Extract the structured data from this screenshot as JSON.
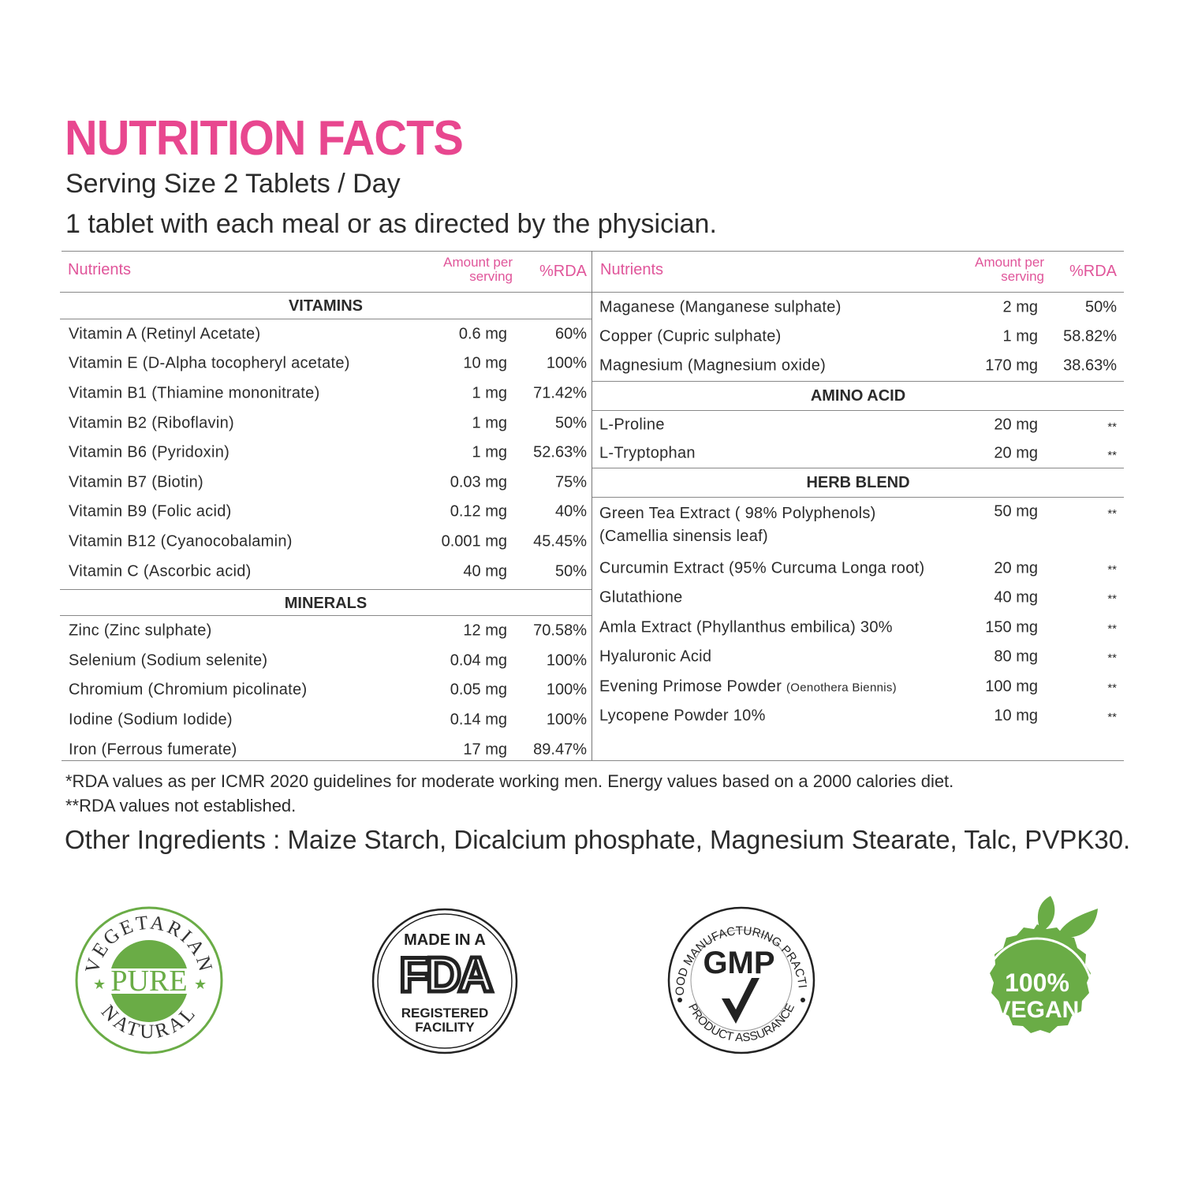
{
  "title": "NUTRITION FACTS",
  "serving_size": "Serving Size 2 Tablets / Day",
  "directions": "1 tablet with each meal or as directed by the physician.",
  "colors": {
    "accent": "#e8478f",
    "header_text": "#e0559a",
    "badge_green": "#6aac46",
    "text": "#2b2b2b"
  },
  "table_header": {
    "nutrients": "Nutrients",
    "amount_line1": "Amount per",
    "amount_line2": "serving",
    "rda": "%RDA"
  },
  "left": {
    "sections": [
      {
        "name": "VITAMINS",
        "rows": [
          {
            "name": "Vitamin A (Retinyl Acetate)",
            "amount": "0.6 mg",
            "rda": "60%"
          },
          {
            "name": "Vitamin E (D-Alpha tocopheryl acetate)",
            "amount": "10 mg",
            "rda": "100%"
          },
          {
            "name": "Vitamin B1 (Thiamine mononitrate)",
            "amount": "1 mg",
            "rda": "71.42%"
          },
          {
            "name": "Vitamin B2 (Riboflavin)",
            "amount": "1 mg",
            "rda": "50%"
          },
          {
            "name": "Vitamin B6 (Pyridoxin)",
            "amount": "1 mg",
            "rda": "52.63%"
          },
          {
            "name": "Vitamin B7 (Biotin)",
            "amount": "0.03 mg",
            "rda": "75%"
          },
          {
            "name": "Vitamin B9 (Folic acid)",
            "amount": "0.12 mg",
            "rda": "40%"
          },
          {
            "name": "Vitamin B12 (Cyanocobalamin)",
            "amount": "0.001 mg",
            "rda": "45.45%"
          },
          {
            "name": "Vitamin C (Ascorbic acid)",
            "amount": "40 mg",
            "rda": "50%"
          }
        ]
      },
      {
        "name": "MINERALS",
        "rows": [
          {
            "name": "Zinc (Zinc sulphate)",
            "amount": "12 mg",
            "rda": "70.58%"
          },
          {
            "name": "Selenium (Sodium selenite)",
            "amount": "0.04 mg",
            "rda": "100%"
          },
          {
            "name": "Chromium (Chromium picolinate)",
            "amount": "0.05 mg",
            "rda": "100%"
          },
          {
            "name": "Iodine (Sodium Iodide)",
            "amount": "0.14 mg",
            "rda": "100%"
          },
          {
            "name": "Iron (Ferrous fumerate)",
            "amount": "17 mg",
            "rda": "89.47%"
          }
        ]
      }
    ]
  },
  "right": {
    "sections": [
      {
        "name": "",
        "rows": [
          {
            "name": "Maganese (Manganese sulphate)",
            "amount": "2 mg",
            "rda": "50%"
          },
          {
            "name": "Copper (Cupric sulphate)",
            "amount": "1 mg",
            "rda": "58.82%"
          },
          {
            "name": "Magnesium (Magnesium oxide)",
            "amount": "170 mg",
            "rda": "38.63%"
          }
        ]
      },
      {
        "name": "AMINO ACID",
        "rows": [
          {
            "name": "L-Proline",
            "amount": "20 mg",
            "rda": "**"
          },
          {
            "name": "L-Tryptophan",
            "amount": "20 mg",
            "rda": "**"
          }
        ]
      },
      {
        "name": "HERB BLEND",
        "rows": [
          {
            "name": "Green Tea Extract ( 98% Polyphenols)",
            "name2": "(Camellia sinensis leaf)",
            "amount": "50 mg",
            "rda": "**"
          },
          {
            "name": "Curcumin Extract (95% Curcuma Longa root)",
            "amount": "20 mg",
            "rda": "**"
          },
          {
            "name": "Glutathione",
            "amount": "40 mg",
            "rda": "**"
          },
          {
            "name": "Amla Extract (Phyllanthus embilica) 30%",
            "amount": "150 mg",
            "rda": "**"
          },
          {
            "name": "Hyaluronic Acid",
            "amount": "80 mg",
            "rda": "**"
          },
          {
            "name": "Evening Primose Powder",
            "name_small": "(Oenothera Biennis)",
            "amount": "100 mg",
            "rda": "**"
          },
          {
            "name": "Lycopene Powder 10%",
            "amount": "10 mg",
            "rda": "**"
          }
        ]
      }
    ]
  },
  "footnotes": [
    "*RDA values as per ICMR 2020 guidelines for moderate working men. Energy values based on a 2000 calories diet.",
    "**RDA values not established."
  ],
  "other_ingredients": "Other Ingredients : Maize Starch, Dicalcium phosphate, Magnesium Stearate, Talc, PVPK30.",
  "badges": {
    "vegetarian": {
      "top": "VEGETARIAN",
      "middle": "PURE",
      "bottom": "NATURAL",
      "icon": "vegetarian-seal"
    },
    "fda": {
      "top": "MADE IN A",
      "logo": "FDA",
      "bottom1": "REGISTERED",
      "bottom2": "FACILITY",
      "icon": "fda-seal"
    },
    "gmp": {
      "top": "GOOD MANUFACTURING PRACTICE",
      "middle": "GMP",
      "bottom": "PRODUCT ASSURANCE",
      "icon": "gmp-checkmark-seal"
    },
    "vegan": {
      "line1": "100%",
      "line2": "VEGAN",
      "icon": "vegan-leaf-badge"
    }
  }
}
